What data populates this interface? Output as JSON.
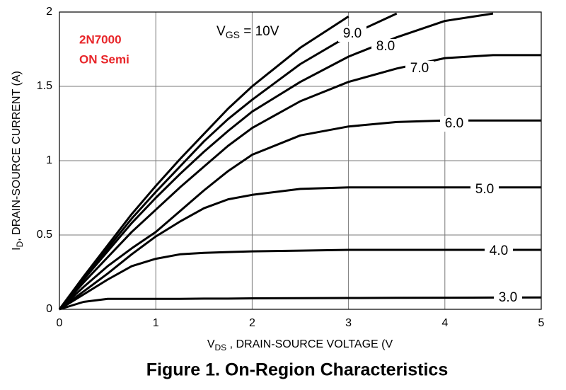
{
  "chart_data": {
    "type": "line",
    "annotations": [
      "2N7000",
      "ON Semi"
    ],
    "label_prefix": {
      "main": "V",
      "sub": "GS"
    },
    "x_label": {
      "main": "V",
      "sub": "DS",
      "rest": " , DRAIN-SOURCE VOLTAGE (V"
    },
    "y_label": {
      "main": "I",
      "sub": "D",
      "rest": ", DRAIN-SOURCE CURRENT (A)"
    },
    "caption": "Figure 1. On-Region Characteristics",
    "x": [
      0,
      0.25,
      0.5,
      0.75,
      1,
      1.25,
      1.5,
      1.75,
      2,
      2.5,
      3,
      3.5,
      4,
      4.5,
      5
    ],
    "series": [
      {
        "name": " = 10V",
        "color": "#000000",
        "values": [
          0,
          0.22,
          0.43,
          0.64,
          0.83,
          1.01,
          1.18,
          1.35,
          1.5,
          1.76,
          1.97,
          null,
          null,
          null,
          null
        ]
      },
      {
        "name": "9.0",
        "color": "#000000",
        "values": [
          0,
          0.21,
          0.41,
          0.61,
          0.79,
          0.96,
          1.13,
          1.28,
          1.41,
          1.65,
          1.84,
          1.99,
          null,
          null,
          null
        ]
      },
      {
        "name": "8.0",
        "color": "#000000",
        "values": [
          0,
          0.2,
          0.39,
          0.58,
          0.75,
          0.91,
          1.06,
          1.2,
          1.33,
          1.53,
          1.7,
          1.83,
          1.94,
          1.99,
          null
        ]
      },
      {
        "name": "7.0",
        "color": "#000000",
        "values": [
          0,
          0.18,
          0.35,
          0.52,
          0.67,
          0.82,
          0.96,
          1.1,
          1.22,
          1.4,
          1.53,
          1.62,
          1.69,
          1.71,
          1.71
        ]
      },
      {
        "name": "6.0",
        "color": "#000000",
        "values": [
          0,
          0.15,
          0.29,
          0.41,
          0.52,
          0.66,
          0.8,
          0.93,
          1.04,
          1.17,
          1.23,
          1.26,
          1.27,
          1.27,
          1.27
        ]
      },
      {
        "name": "5.0",
        "color": "#000000",
        "values": [
          0,
          0.12,
          0.24,
          0.37,
          0.49,
          0.59,
          0.68,
          0.74,
          0.77,
          0.81,
          0.82,
          0.82,
          0.82,
          0.82,
          0.82
        ]
      },
      {
        "name": "4.0",
        "color": "#000000",
        "values": [
          0,
          0.1,
          0.2,
          0.29,
          0.34,
          0.37,
          0.38,
          0.385,
          0.39,
          0.395,
          0.4,
          0.4,
          0.4,
          0.4,
          0.4
        ]
      },
      {
        "name": "3.0",
        "color": "#000000",
        "values": [
          0,
          0.05,
          0.07,
          0.07,
          0.07,
          0.07,
          0.072,
          0.072,
          0.074,
          0.075,
          0.076,
          0.077,
          0.078,
          0.079,
          0.08
        ]
      }
    ],
    "xlim": [
      0,
      5
    ],
    "ylim": [
      0,
      2
    ],
    "xticks": [
      0,
      1,
      2,
      3,
      4,
      5
    ],
    "yticks": [
      0,
      0.5,
      1,
      1.5,
      2
    ],
    "grid": true
  }
}
